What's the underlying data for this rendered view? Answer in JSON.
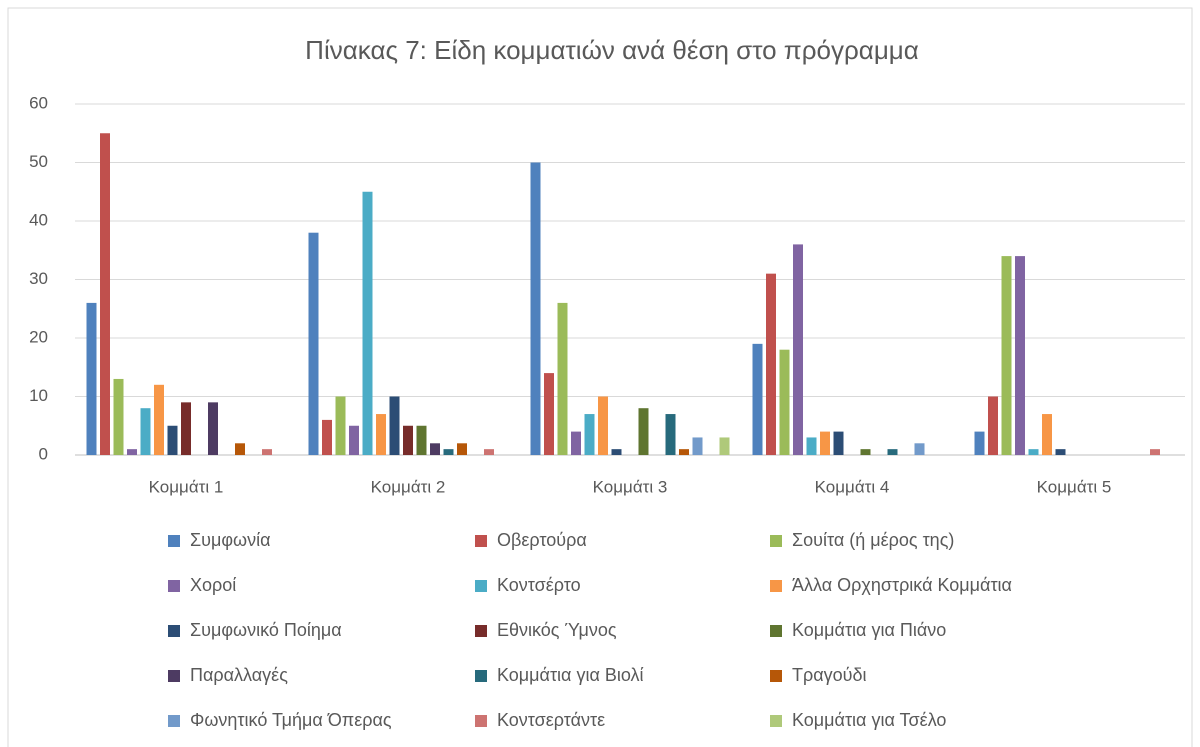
{
  "chart_data": {
    "type": "bar",
    "title": "Πίνακας 7: Είδη κομματιών ανά θέση στο πρόγραμμα",
    "categories": [
      "Κομμάτι 1",
      "Κομμάτι 2",
      "Κομμάτι 3",
      "Κομμάτι 4",
      "Κομμάτι 5"
    ],
    "series": [
      {
        "name": "Συμφωνία",
        "color": "#4f81bd",
        "values": [
          26,
          38,
          50,
          19,
          4
        ]
      },
      {
        "name": "Οβερτούρα",
        "color": "#c0504d",
        "values": [
          55,
          6,
          14,
          31,
          10
        ]
      },
      {
        "name": "Σουίτα (ή μέρος της)",
        "color": "#9bbb59",
        "values": [
          13,
          10,
          26,
          18,
          34
        ]
      },
      {
        "name": "Χοροί",
        "color": "#8064a2",
        "values": [
          1,
          5,
          4,
          36,
          34
        ]
      },
      {
        "name": "Κοντσέρτο",
        "color": "#4bacc6",
        "values": [
          8,
          45,
          7,
          3,
          1
        ]
      },
      {
        "name": "Άλλα Ορχηστρικά Κομμάτια",
        "color": "#f79646",
        "values": [
          12,
          7,
          10,
          4,
          7
        ]
      },
      {
        "name": "Συμφωνικό Ποίημα",
        "color": "#2c4d75",
        "values": [
          5,
          10,
          1,
          4,
          1
        ]
      },
      {
        "name": "Εθνικός Ύμνος",
        "color": "#772c2a",
        "values": [
          9,
          5,
          0,
          0,
          0
        ]
      },
      {
        "name": "Κομμάτια για Πιάνο",
        "color": "#5f7530",
        "values": [
          0,
          5,
          8,
          1,
          0
        ]
      },
      {
        "name": "Παραλλαγές",
        "color": "#4d3b62",
        "values": [
          9,
          2,
          0,
          0,
          0
        ]
      },
      {
        "name": "Κομμάτια για Βιολί",
        "color": "#276a7c",
        "values": [
          0,
          1,
          7,
          1,
          0
        ]
      },
      {
        "name": "Τραγούδι",
        "color": "#b65708",
        "values": [
          2,
          2,
          1,
          0,
          0
        ]
      },
      {
        "name": "Φωνητικό Τμήμα Όπερας",
        "color": "#729aca",
        "values": [
          0,
          0,
          3,
          2,
          0
        ]
      },
      {
        "name": "Κοντσερτάντε",
        "color": "#cd7371",
        "values": [
          1,
          1,
          0,
          0,
          1
        ]
      },
      {
        "name": "Κομμάτια για Τσέλο",
        "color": "#afc97a",
        "values": [
          0,
          0,
          3,
          0,
          0
        ]
      }
    ],
    "ylim": [
      0,
      60
    ],
    "yticks": [
      0,
      10,
      20,
      30,
      40,
      50,
      60
    ],
    "grid": true
  }
}
